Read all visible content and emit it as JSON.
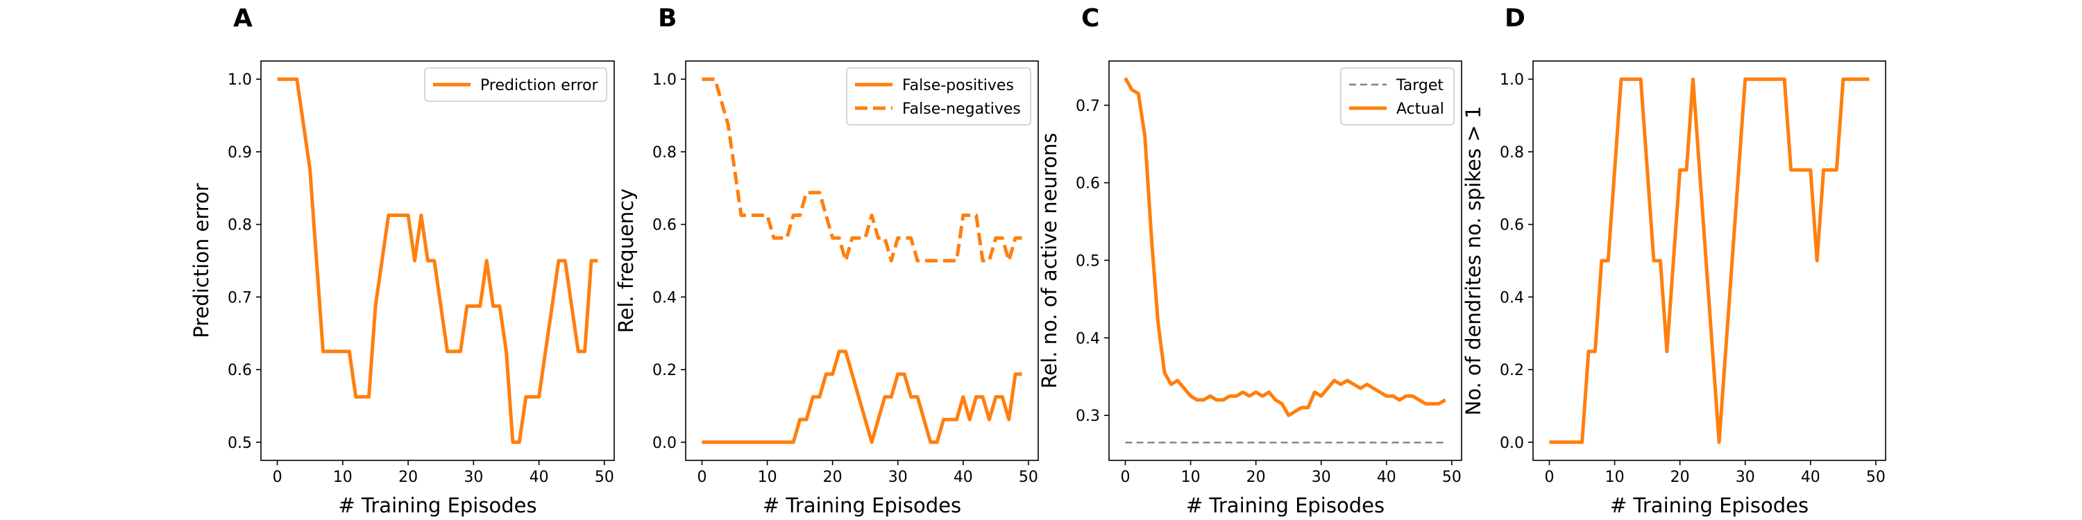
{
  "figure": {
    "panels": [
      {
        "letter": "A"
      },
      {
        "letter": "B"
      },
      {
        "letter": "C"
      },
      {
        "letter": "D"
      }
    ]
  },
  "colors": {
    "series": "#ff7f0e",
    "target": "#808080",
    "axes": "#000000"
  },
  "chart_data": [
    {
      "type": "line",
      "panel": "A",
      "title": "",
      "xlabel": "# Training Episodes",
      "ylabel": "Prediction error",
      "xlim": [
        -2.5,
        51.5
      ],
      "ylim": [
        0.475,
        1.025
      ],
      "xticks": [
        0,
        10,
        20,
        30,
        40,
        50
      ],
      "yticks": [
        0.5,
        0.6,
        0.7,
        0.8,
        0.9,
        1.0
      ],
      "ytick_labels": [
        "0.5",
        "0.6",
        "0.7",
        "0.8",
        "0.9",
        "1.0"
      ],
      "legend": {
        "position": "upper right"
      },
      "series": [
        {
          "name": "Prediction error",
          "color": "#ff7f0e",
          "style": "solid",
          "x": [
            0,
            1,
            2,
            3,
            4,
            5,
            6,
            7,
            8,
            9,
            10,
            11,
            12,
            13,
            14,
            15,
            16,
            17,
            18,
            19,
            20,
            21,
            22,
            23,
            24,
            25,
            26,
            27,
            28,
            29,
            30,
            31,
            32,
            33,
            34,
            35,
            36,
            37,
            38,
            39,
            40,
            41,
            42,
            43,
            44,
            45,
            46,
            47,
            48,
            49
          ],
          "y": [
            1.0,
            1.0,
            1.0,
            1.0,
            0.9375,
            0.875,
            0.75,
            0.625,
            0.625,
            0.625,
            0.625,
            0.625,
            0.5625,
            0.5625,
            0.5625,
            0.6875,
            0.75,
            0.8125,
            0.8125,
            0.8125,
            0.8125,
            0.75,
            0.8125,
            0.75,
            0.75,
            0.6875,
            0.625,
            0.625,
            0.625,
            0.6875,
            0.6875,
            0.6875,
            0.75,
            0.6875,
            0.6875,
            0.625,
            0.5,
            0.5,
            0.5625,
            0.5625,
            0.5625,
            0.625,
            0.6875,
            0.75,
            0.75,
            0.6875,
            0.625,
            0.625,
            0.75,
            0.75
          ]
        }
      ]
    },
    {
      "type": "line",
      "panel": "B",
      "title": "",
      "xlabel": "# Training Episodes",
      "ylabel": "Rel. frequency",
      "xlim": [
        -2.5,
        51.5
      ],
      "ylim": [
        -0.05,
        1.05
      ],
      "xticks": [
        0,
        10,
        20,
        30,
        40,
        50
      ],
      "yticks": [
        0.0,
        0.2,
        0.4,
        0.6,
        0.8,
        1.0
      ],
      "ytick_labels": [
        "0.0",
        "0.2",
        "0.4",
        "0.6",
        "0.8",
        "1.0"
      ],
      "legend": {
        "position": "upper right"
      },
      "series": [
        {
          "name": "False-positives",
          "color": "#ff7f0e",
          "style": "solid",
          "x": [
            0,
            1,
            2,
            3,
            4,
            5,
            6,
            7,
            8,
            9,
            10,
            11,
            12,
            13,
            14,
            15,
            16,
            17,
            18,
            19,
            20,
            21,
            22,
            23,
            24,
            25,
            26,
            27,
            28,
            29,
            30,
            31,
            32,
            33,
            34,
            35,
            36,
            37,
            38,
            39,
            40,
            41,
            42,
            43,
            44,
            45,
            46,
            47,
            48,
            49
          ],
          "y": [
            0,
            0,
            0,
            0,
            0,
            0,
            0,
            0,
            0,
            0,
            0,
            0,
            0,
            0,
            0,
            0.0625,
            0.0625,
            0.125,
            0.125,
            0.1875,
            0.1875,
            0.25,
            0.25,
            0.1875,
            0.125,
            0.0625,
            0,
            0.0625,
            0.125,
            0.125,
            0.1875,
            0.1875,
            0.125,
            0.125,
            0.0625,
            0,
            0,
            0.0625,
            0.0625,
            0.0625,
            0.125,
            0.0625,
            0.125,
            0.125,
            0.0625,
            0.125,
            0.125,
            0.0625,
            0.1875,
            0.1875
          ]
        },
        {
          "name": "False-negatives",
          "color": "#ff7f0e",
          "style": "dashed",
          "x": [
            0,
            1,
            2,
            3,
            4,
            5,
            6,
            7,
            8,
            9,
            10,
            11,
            12,
            13,
            14,
            15,
            16,
            17,
            18,
            19,
            20,
            21,
            22,
            23,
            24,
            25,
            26,
            27,
            28,
            29,
            30,
            31,
            32,
            33,
            34,
            35,
            36,
            37,
            38,
            39,
            40,
            41,
            42,
            43,
            44,
            45,
            46,
            47,
            48,
            49
          ],
          "y": [
            1.0,
            1.0,
            1.0,
            0.9375,
            0.875,
            0.75,
            0.625,
            0.625,
            0.625,
            0.625,
            0.625,
            0.5625,
            0.5625,
            0.5625,
            0.625,
            0.625,
            0.6875,
            0.6875,
            0.6875,
            0.625,
            0.5625,
            0.5625,
            0.5,
            0.5625,
            0.5625,
            0.5625,
            0.625,
            0.5625,
            0.5625,
            0.5,
            0.5625,
            0.5625,
            0.5625,
            0.5,
            0.5,
            0.5,
            0.5,
            0.5,
            0.5,
            0.5,
            0.625,
            0.625,
            0.625,
            0.5,
            0.5,
            0.5625,
            0.5625,
            0.5,
            0.5625,
            0.5625
          ]
        }
      ]
    },
    {
      "type": "line",
      "panel": "C",
      "title": "",
      "xlabel": "# Training Episodes",
      "ylabel": "Rel. no. of active neurons",
      "xlim": [
        -2.5,
        51.5
      ],
      "ylim": [
        0.242,
        0.757
      ],
      "xticks": [
        0,
        10,
        20,
        30,
        40,
        50
      ],
      "yticks": [
        0.3,
        0.4,
        0.5,
        0.6,
        0.7
      ],
      "ytick_labels": [
        "0.3",
        "0.4",
        "0.5",
        "0.6",
        "0.7"
      ],
      "legend": {
        "position": "upper right"
      },
      "series": [
        {
          "name": "Target",
          "color": "#808080",
          "style": "dashed",
          "x": [
            0,
            49
          ],
          "y": [
            0.265,
            0.265
          ]
        },
        {
          "name": "Actual",
          "color": "#ff7f0e",
          "style": "solid",
          "x": [
            0,
            1,
            2,
            3,
            4,
            5,
            6,
            7,
            8,
            9,
            10,
            11,
            12,
            13,
            14,
            15,
            16,
            17,
            18,
            19,
            20,
            21,
            22,
            23,
            24,
            25,
            26,
            27,
            28,
            29,
            30,
            31,
            32,
            33,
            34,
            35,
            36,
            37,
            38,
            39,
            40,
            41,
            42,
            43,
            44,
            45,
            46,
            47,
            48,
            49
          ],
          "y": [
            0.735,
            0.72,
            0.715,
            0.66,
            0.53,
            0.42,
            0.355,
            0.34,
            0.345,
            0.335,
            0.325,
            0.32,
            0.32,
            0.325,
            0.32,
            0.32,
            0.325,
            0.325,
            0.33,
            0.325,
            0.33,
            0.325,
            0.33,
            0.32,
            0.315,
            0.3,
            0.305,
            0.31,
            0.31,
            0.33,
            0.325,
            0.335,
            0.345,
            0.34,
            0.345,
            0.34,
            0.335,
            0.34,
            0.335,
            0.33,
            0.325,
            0.325,
            0.32,
            0.325,
            0.325,
            0.32,
            0.315,
            0.315,
            0.315,
            0.32
          ]
        }
      ]
    },
    {
      "type": "line",
      "panel": "D",
      "title": "",
      "xlabel": "# Training Episodes",
      "ylabel": "No. of dendrites no. spikes > 1",
      "xlim": [
        -2.5,
        51.5
      ],
      "ylim": [
        -0.05,
        1.05
      ],
      "xticks": [
        0,
        10,
        20,
        30,
        40,
        50
      ],
      "yticks": [
        0.0,
        0.2,
        0.4,
        0.6,
        0.8,
        1.0
      ],
      "ytick_labels": [
        "0.0",
        "0.2",
        "0.4",
        "0.6",
        "0.8",
        "1.0"
      ],
      "legend": null,
      "series": [
        {
          "color": "#ff7f0e",
          "style": "solid",
          "x": [
            0,
            1,
            2,
            3,
            4,
            5,
            6,
            7,
            8,
            9,
            10,
            11,
            12,
            13,
            14,
            15,
            16,
            17,
            18,
            19,
            20,
            21,
            22,
            23,
            24,
            25,
            26,
            27,
            28,
            29,
            30,
            31,
            32,
            33,
            34,
            35,
            36,
            37,
            38,
            39,
            40,
            41,
            42,
            43,
            44,
            45,
            46,
            47,
            48,
            49
          ],
          "y": [
            0,
            0,
            0,
            0,
            0,
            0,
            0.25,
            0.25,
            0.5,
            0.5,
            0.75,
            1,
            1,
            1,
            1,
            0.75,
            0.5,
            0.5,
            0.25,
            0.5,
            0.75,
            0.75,
            1,
            0.75,
            0.5,
            0.25,
            0,
            0.25,
            0.5,
            0.75,
            1,
            1,
            1,
            1,
            1,
            1,
            1,
            0.75,
            0.75,
            0.75,
            0.75,
            0.5,
            0.75,
            0.75,
            0.75,
            1,
            1,
            1,
            1,
            1
          ]
        }
      ]
    }
  ]
}
